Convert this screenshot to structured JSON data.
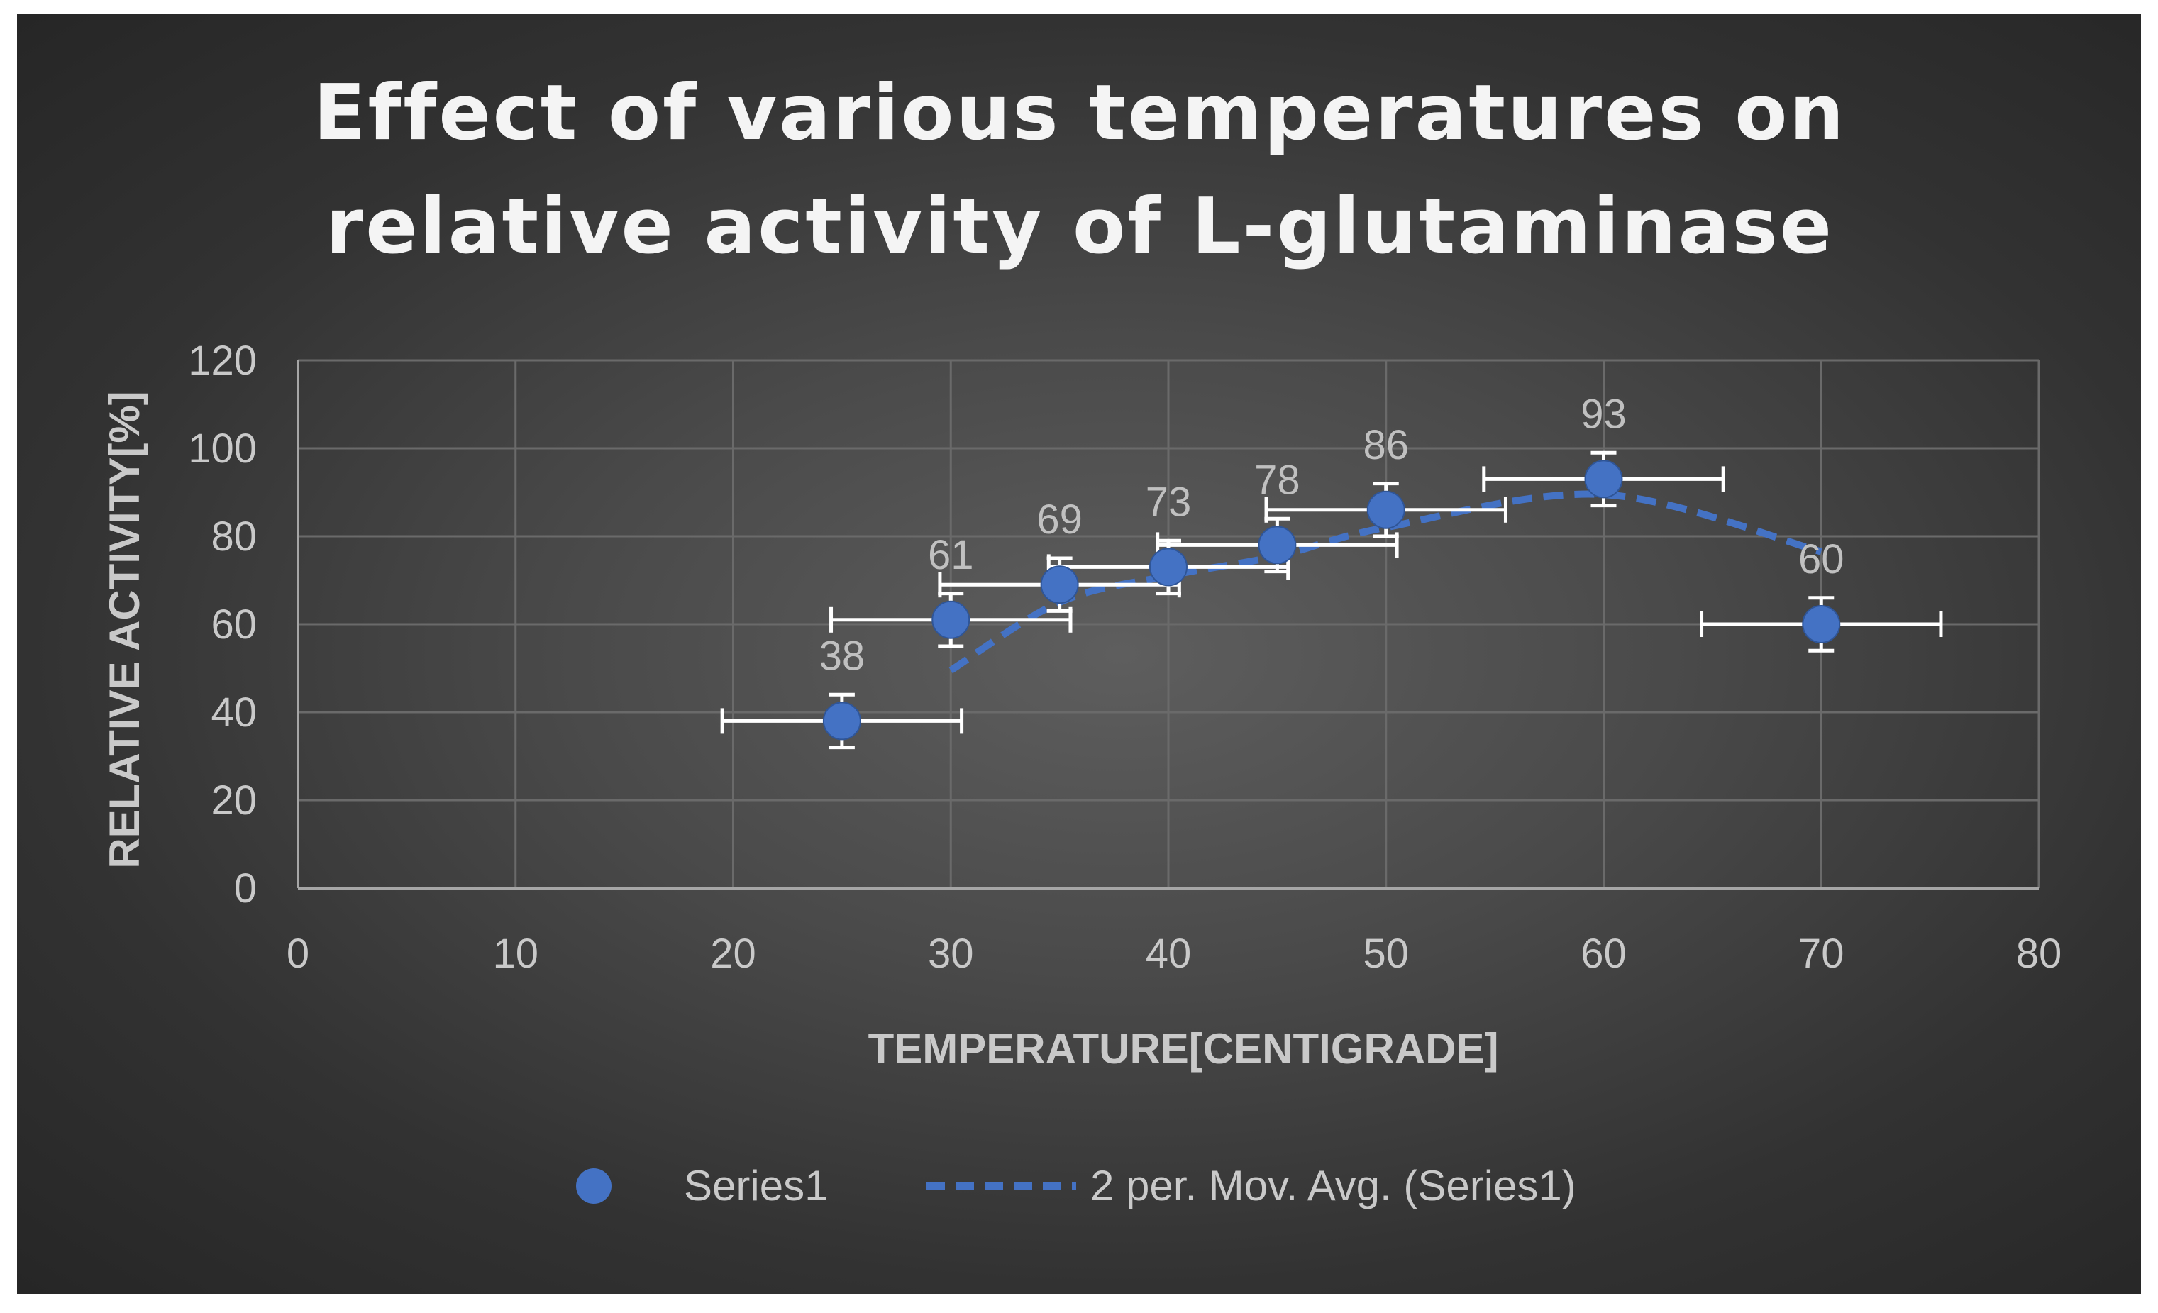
{
  "chart_data": {
    "type": "scatter",
    "title_lines": [
      "Effect of  various temperatures on",
      "relative activity of L-glutaminase"
    ],
    "xlabel": "TEMPERATURE[CENTIGRADE]",
    "ylabel": "RELATIVE ACTIVITY[%]",
    "xlim": [
      0,
      80
    ],
    "ylim": [
      0,
      120
    ],
    "x_ticks": [
      0,
      10,
      20,
      30,
      40,
      50,
      60,
      70,
      80
    ],
    "y_ticks": [
      0,
      20,
      40,
      60,
      80,
      100,
      120
    ],
    "grid": true,
    "series": [
      {
        "name": "Series1",
        "x": [
          25,
          30,
          35,
          40,
          45,
          50,
          60,
          70
        ],
        "y": [
          38,
          61,
          69,
          73,
          78,
          86,
          93,
          60
        ],
        "data_labels": [
          "38",
          "61",
          "69",
          "73",
          "78",
          "86",
          "93",
          "60"
        ],
        "x_error": [
          5.5,
          5.5,
          5.5,
          5.5,
          5.5,
          5.5,
          5.5,
          5.5
        ],
        "y_error": [
          6,
          6,
          6,
          6,
          6,
          6,
          6,
          6
        ],
        "color": "#4472c4"
      }
    ],
    "trendline": {
      "name": "2 per. Mov. Avg. (Series1)",
      "type": "moving_average",
      "period": 2,
      "color": "#4472c4",
      "style": "dashed"
    },
    "legend_position": "bottom",
    "colors": {
      "background": "#3a3a3a",
      "grid": "#6a6a6a",
      "axis": "#a6a6a6",
      "text": "#c9c9c9",
      "title": "#f4f4f4",
      "error_bar": "#ffffff"
    }
  }
}
